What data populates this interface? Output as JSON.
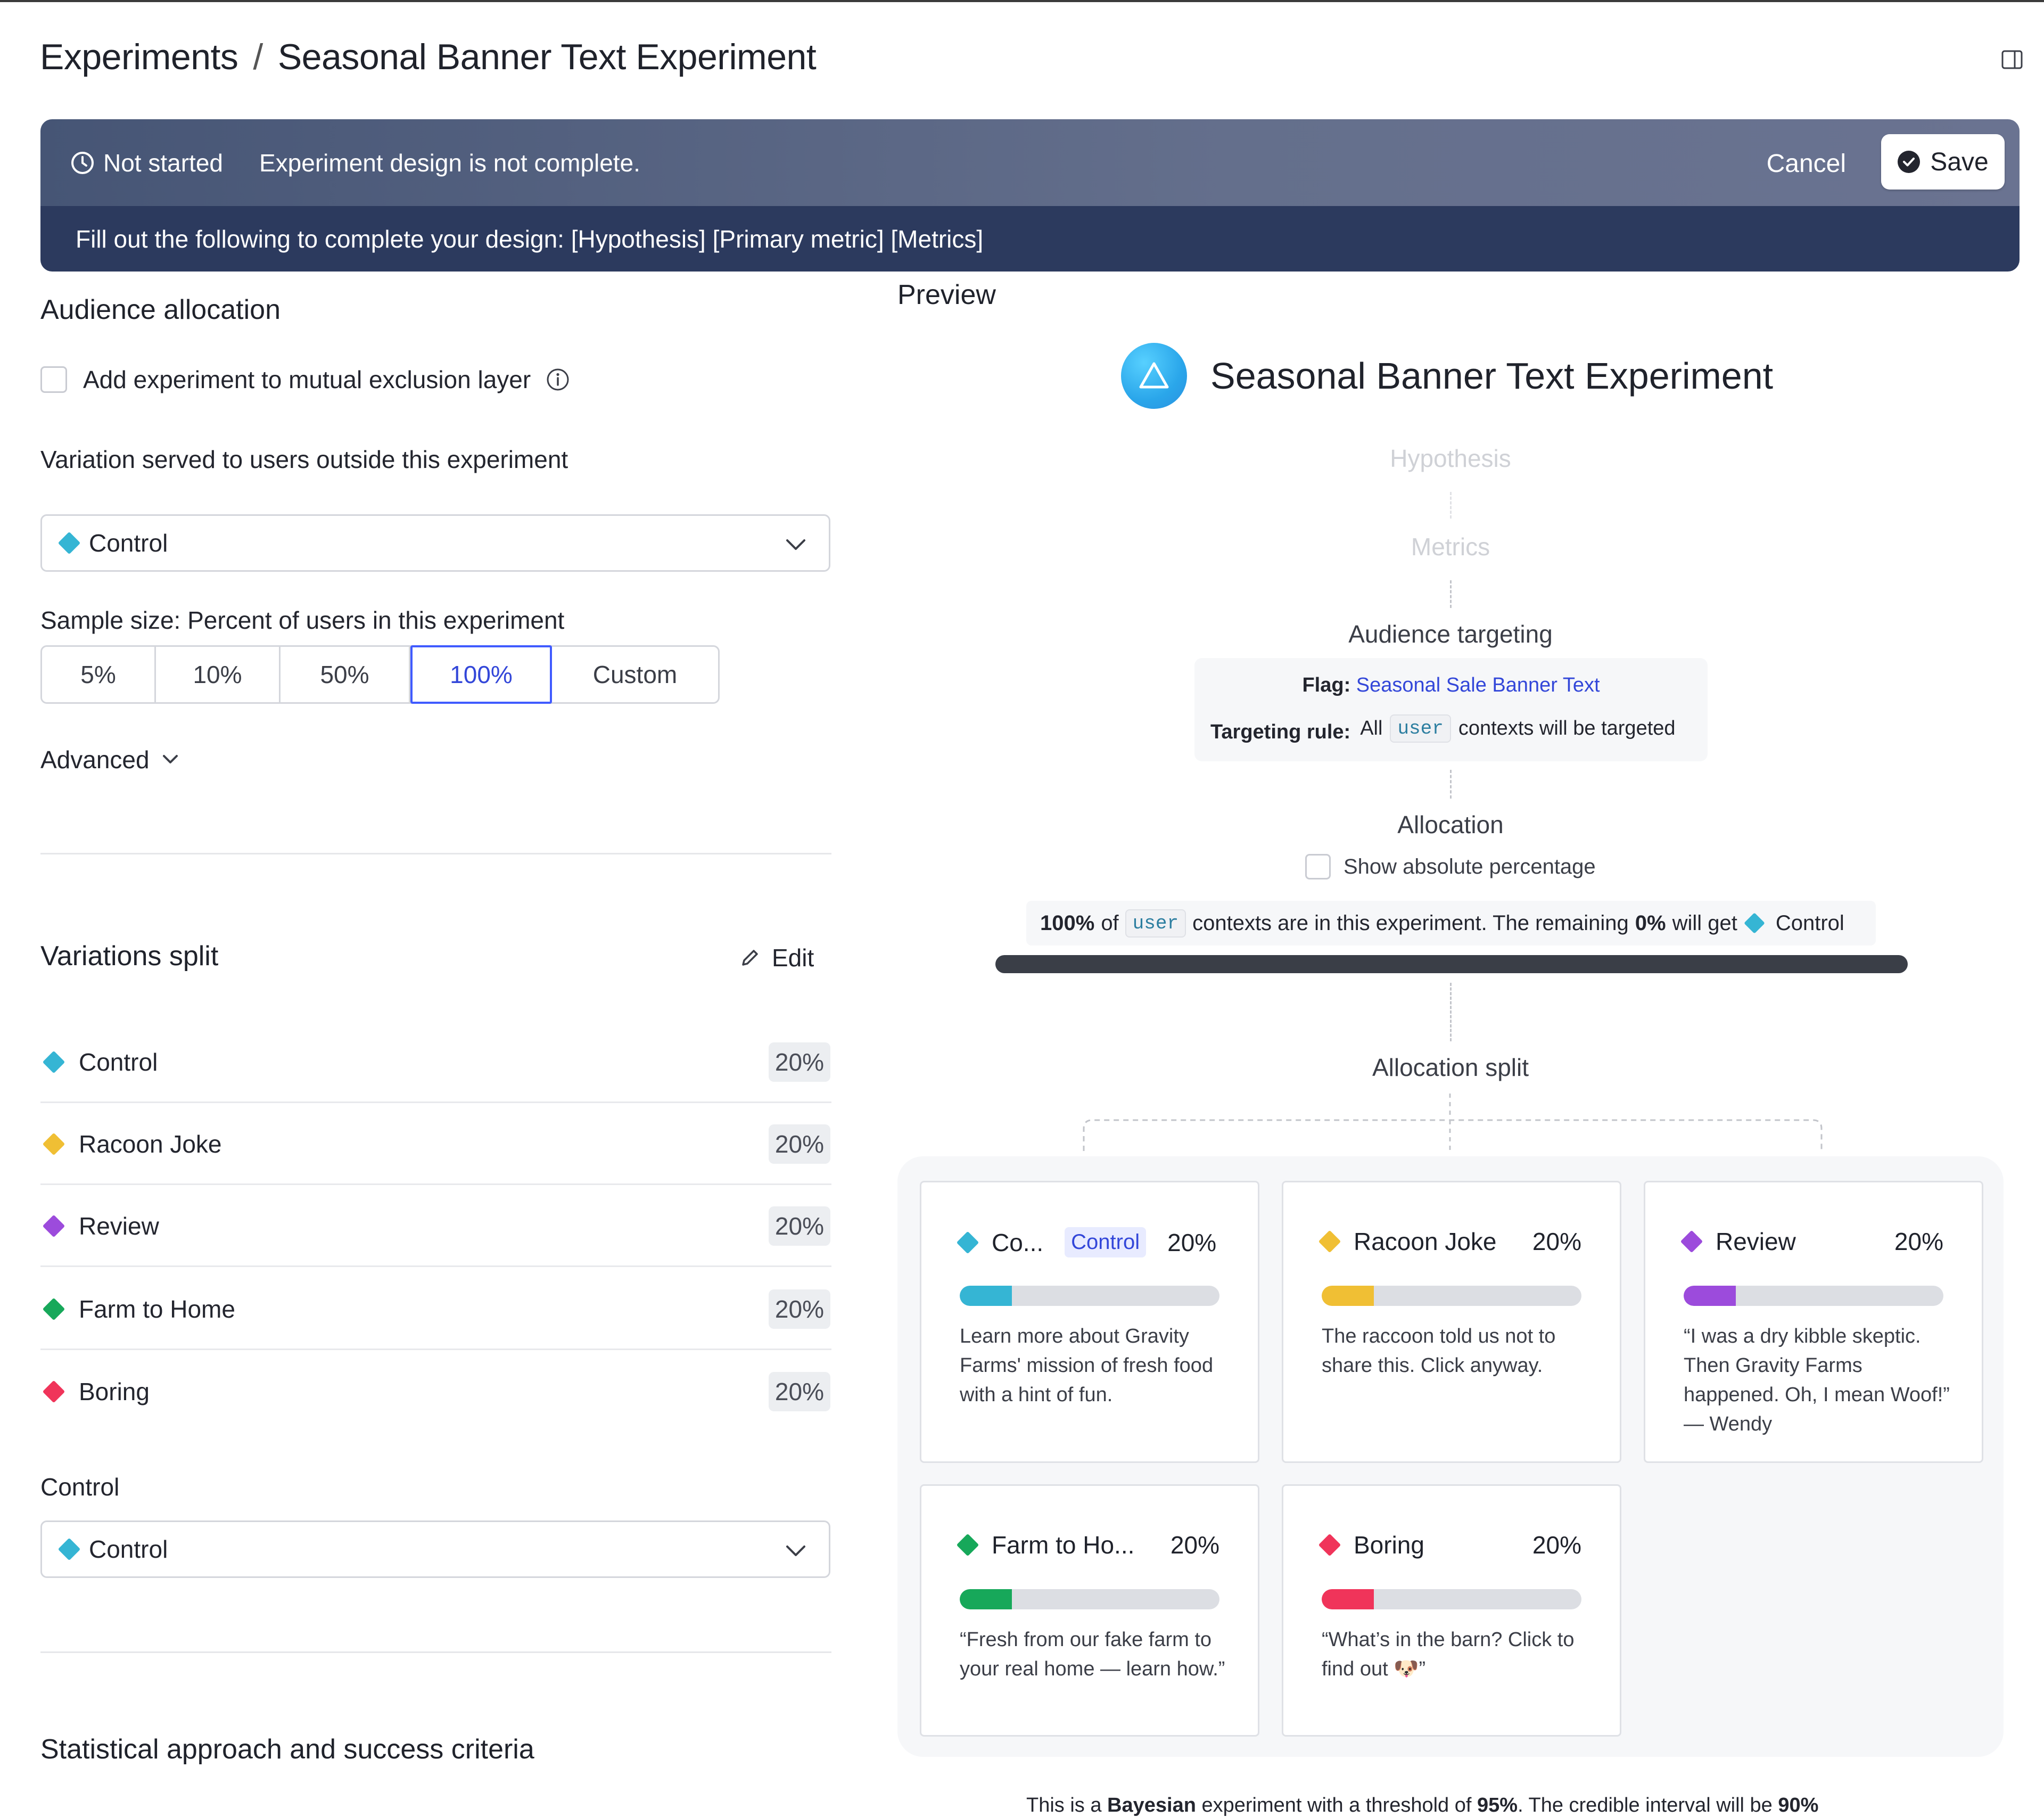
{
  "breadcrumb": {
    "root": "Experiments",
    "separator": "/",
    "current": "Seasonal Banner Text Experiment"
  },
  "banner": {
    "status": "Not started",
    "message": "Experiment design is not complete.",
    "cancel_label": "Cancel",
    "save_label": "Save",
    "todo": "Fill out the following to complete your design: [Hypothesis] [Primary metric] [Metrics]"
  },
  "audience": {
    "title": "Audience allocation",
    "mutex_label": "Add experiment to mutual exclusion layer",
    "outside_label": "Variation served to users outside this experiment",
    "outside_value": "Control",
    "sample_label": "Sample size: Percent of users in this experiment",
    "sample_options": [
      "5%",
      "10%",
      "50%",
      "100%",
      "Custom"
    ],
    "sample_selected": "100%",
    "advanced_label": "Advanced"
  },
  "variations": {
    "title": "Variations split",
    "edit_label": "Edit",
    "items": [
      {
        "name": "Control",
        "pct": "20%",
        "color": "#35b5d4"
      },
      {
        "name": "Racoon Joke",
        "pct": "20%",
        "color": "#f0bf34"
      },
      {
        "name": "Review",
        "pct": "20%",
        "color": "#9c4bdc"
      },
      {
        "name": "Farm to Home",
        "pct": "20%",
        "color": "#17a85a"
      },
      {
        "name": "Boring",
        "pct": "20%",
        "color": "#f0345a"
      }
    ],
    "control_label": "Control",
    "control_value": "Control"
  },
  "stat": {
    "title": "Statistical approach and success criteria"
  },
  "preview": {
    "label": "Preview",
    "title": "Seasonal Banner Text Experiment",
    "hypothesis": "Hypothesis",
    "metrics": "Metrics",
    "targeting_title": "Audience targeting",
    "flag_label": "Flag:",
    "flag_value": "Seasonal Sale Banner Text",
    "rule_label": "Targeting rule:",
    "rule_pre": "All",
    "rule_code": "user",
    "rule_post": "contexts will be targeted",
    "allocation_title": "Allocation",
    "show_abs": "Show absolute percentage",
    "sum_pct": "100%",
    "sum_of": "of",
    "sum_code": "user",
    "sum_mid": "contexts are in this experiment. The remaining",
    "sum_rem": "0%",
    "sum_will": "will get",
    "sum_var": "Control",
    "allocation_progress": 100,
    "split_title": "Allocation split",
    "cards": [
      {
        "name": "Co...",
        "tag": "Control",
        "pct": "20%",
        "color": "#35b5d4",
        "desc": "Learn more about Gravity Farms' mission of fresh food with a hint of fun."
      },
      {
        "name": "Racoon Joke",
        "tag": "",
        "pct": "20%",
        "color": "#f0bf34",
        "desc": "The raccoon told us not to share this. Click anyway."
      },
      {
        "name": "Review",
        "tag": "",
        "pct": "20%",
        "color": "#9c4bdc",
        "desc": "“I was a dry kibble skeptic. Then Gravity Farms happened. Oh, I mean Woof!” — Wendy"
      },
      {
        "name": "Farm to Ho...",
        "tag": "",
        "pct": "20%",
        "color": "#17a85a",
        "desc": "“Fresh from our fake farm to your real home — learn how.”"
      },
      {
        "name": "Boring",
        "tag": "",
        "pct": "20%",
        "color": "#f0345a",
        "desc": "“What’s in the barn? Click to find out 🐶”"
      }
    ],
    "footer_pre": "This is a",
    "footer_type": "Bayesian",
    "footer_mid": "experiment with a threshold of",
    "footer_threshold": "95%",
    "footer_mid2": ". The credible interval will be",
    "footer_ci": "90%"
  }
}
